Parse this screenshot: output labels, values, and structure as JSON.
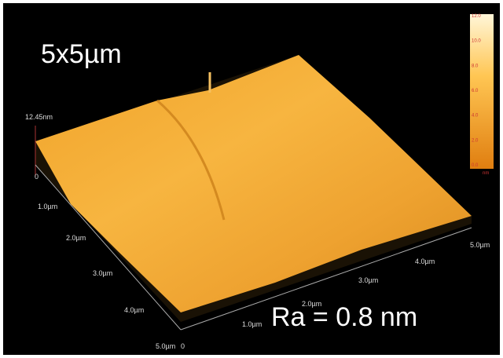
{
  "title": "5x5µm",
  "roughness": "Ra = 0.8 nm",
  "z_label": "12.45nm",
  "left_axis": [
    "0",
    "1.0µm",
    "2.0µm",
    "3.0µm",
    "4.0µm",
    "5.0µm"
  ],
  "right_axis": [
    "0",
    "1.0µm",
    "2.0µm",
    "3.0µm",
    "4.0µm",
    "5.0µm"
  ],
  "colorbar": {
    "ticks": [
      "12.0",
      "10.0",
      "8.0",
      "6.0",
      "4.0",
      "2.0",
      "0.0"
    ],
    "unit": "nm"
  }
}
